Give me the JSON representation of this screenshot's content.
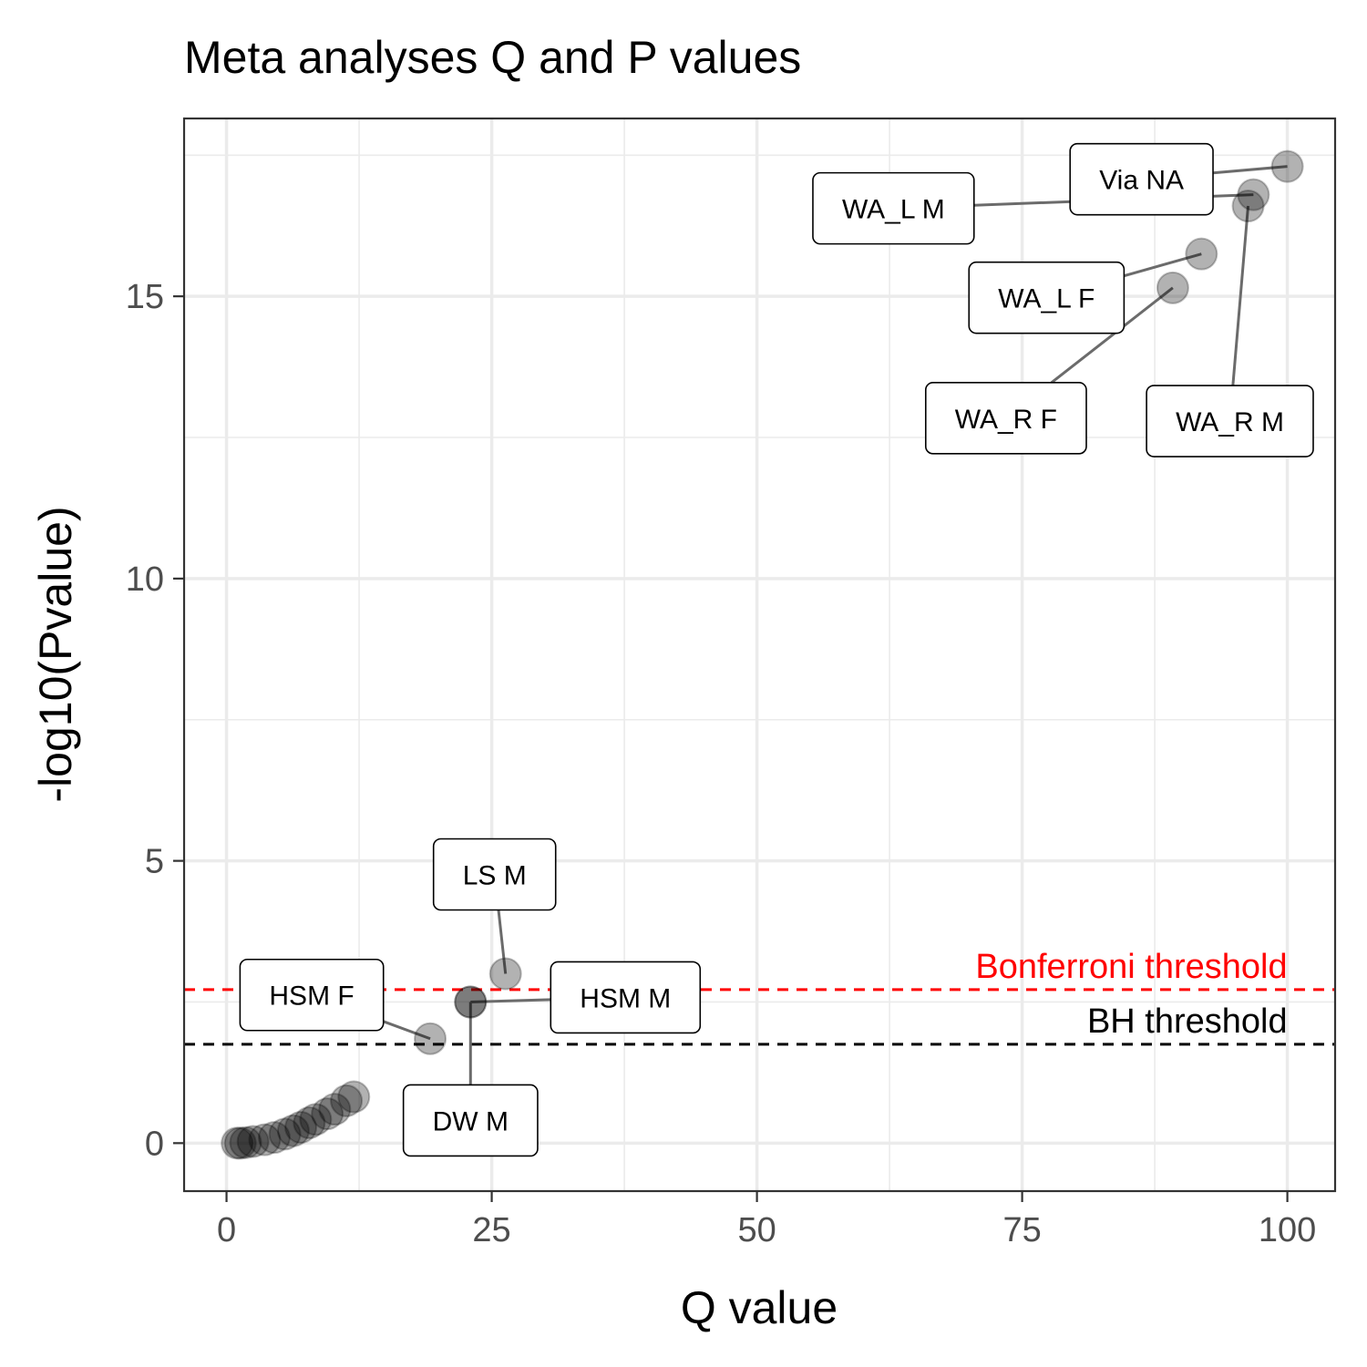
{
  "chart_data": {
    "type": "scatter",
    "title": "Meta analyses Q and P values",
    "xlabel": "Q value",
    "ylabel": "-log10(Pvalue)",
    "xlim": [
      -4,
      104.5
    ],
    "ylim": [
      -0.85,
      18.15
    ],
    "x_ticks": [
      0,
      25,
      50,
      75,
      100
    ],
    "x_tick_labels": [
      "0",
      "25",
      "50",
      "75",
      "100"
    ],
    "y_ticks": [
      0,
      5,
      10,
      15
    ],
    "y_tick_labels": [
      "0",
      "5",
      "10",
      "15"
    ],
    "grid": true,
    "reference_lines": [
      {
        "label": "Bonferroni threshold",
        "y": 2.72,
        "color": "#ff0000"
      },
      {
        "label": "BH threshold",
        "y": 1.75,
        "color": "#000000"
      }
    ],
    "points": [
      {
        "x": 100.0,
        "y": 17.3,
        "label": "Via NA"
      },
      {
        "x": 96.8,
        "y": 16.8,
        "label": "WA_L M"
      },
      {
        "x": 96.3,
        "y": 16.6,
        "label": "WA_R M"
      },
      {
        "x": 91.9,
        "y": 15.75,
        "label": "WA_L F"
      },
      {
        "x": 89.2,
        "y": 15.15,
        "label": "WA_R F"
      },
      {
        "x": 26.3,
        "y": 3.0,
        "label": "LS M"
      },
      {
        "x": 23.0,
        "y": 2.5,
        "label": "HSM M"
      },
      {
        "x": 23.0,
        "y": 2.5,
        "label": "DW M"
      },
      {
        "x": 19.2,
        "y": 1.85,
        "label": "HSM F"
      },
      {
        "x": 12.0,
        "y": 0.82,
        "label": ""
      },
      {
        "x": 11.3,
        "y": 0.75,
        "label": ""
      },
      {
        "x": 10.2,
        "y": 0.6,
        "label": ""
      },
      {
        "x": 9.5,
        "y": 0.52,
        "label": ""
      },
      {
        "x": 8.4,
        "y": 0.42,
        "label": ""
      },
      {
        "x": 7.8,
        "y": 0.36,
        "label": ""
      },
      {
        "x": 7.0,
        "y": 0.28,
        "label": ""
      },
      {
        "x": 6.3,
        "y": 0.22,
        "label": ""
      },
      {
        "x": 5.5,
        "y": 0.16,
        "label": ""
      },
      {
        "x": 4.5,
        "y": 0.1,
        "label": ""
      },
      {
        "x": 3.6,
        "y": 0.06,
        "label": ""
      },
      {
        "x": 2.5,
        "y": 0.03,
        "label": ""
      },
      {
        "x": 1.8,
        "y": 0.01,
        "label": ""
      },
      {
        "x": 1.3,
        "y": 0.0,
        "label": ""
      },
      {
        "x": 1.0,
        "y": 0.0,
        "label": ""
      }
    ]
  },
  "colors": {
    "point_fill": "#000000",
    "point_opacity": 0.3,
    "grid": "#ebebeb",
    "panel_border": "#333333",
    "tick_text": "#4d4d4d",
    "segment": "#6b6b6b"
  }
}
